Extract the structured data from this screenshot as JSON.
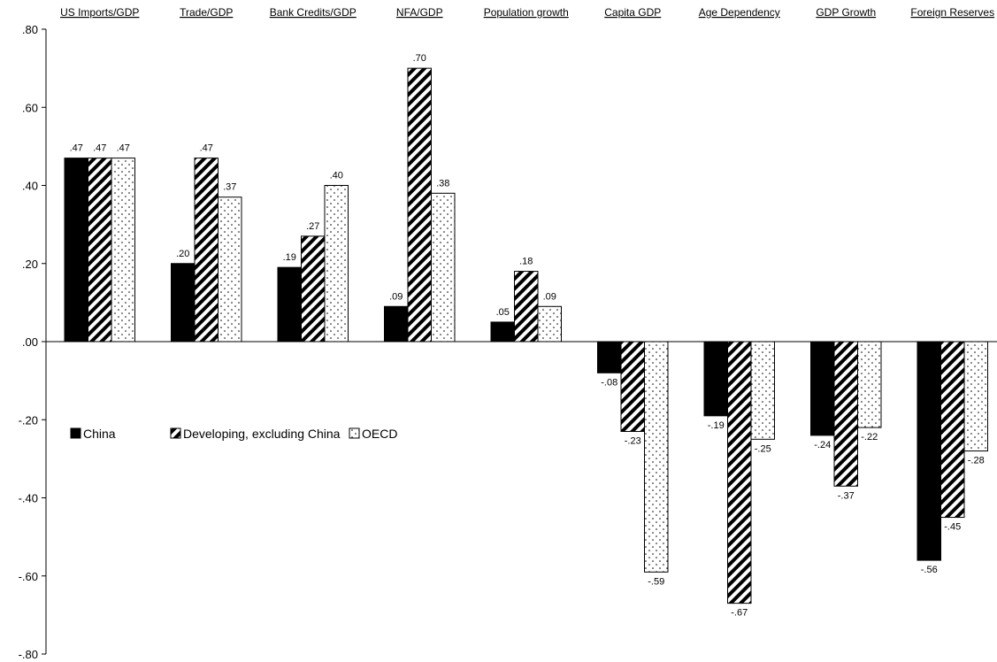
{
  "chart_data": {
    "type": "bar",
    "categories": [
      "US Imports/GDP",
      "Trade/GDP",
      "Bank Credits/GDP",
      "NFA/GDP",
      "Population growth",
      "Capita GDP",
      "Age Dependency",
      "GDP Growth",
      "Foreign Reserves"
    ],
    "series": [
      {
        "name": "China",
        "pattern": "solid",
        "color": "#000000",
        "values": [
          0.47,
          0.2,
          0.19,
          0.09,
          0.05,
          -0.08,
          -0.19,
          -0.24,
          -0.56
        ],
        "labels": [
          ".47",
          ".20",
          ".19",
          ".09",
          ".05",
          "-.08",
          "-.19",
          "-.24",
          "-.56"
        ]
      },
      {
        "name": "Developing, excluding China",
        "pattern": "diagonal-stripes",
        "color": "#000000",
        "values": [
          0.47,
          0.47,
          0.27,
          0.7,
          0.18,
          -0.23,
          -0.67,
          -0.37,
          -0.45
        ],
        "labels": [
          ".47",
          ".47",
          ".27",
          ".70",
          ".18",
          "-.23",
          "-.67",
          "-.37",
          "-.45"
        ]
      },
      {
        "name": "OECD",
        "pattern": "dots",
        "color": "#000000",
        "values": [
          0.47,
          0.37,
          0.4,
          0.38,
          0.09,
          -0.59,
          -0.25,
          -0.22,
          -0.28
        ],
        "labels": [
          ".47",
          ".37",
          ".40",
          ".38",
          ".09",
          "-.59",
          "-.25",
          "-.22",
          "-.28"
        ]
      }
    ],
    "ylim": [
      -0.8,
      0.8
    ],
    "yticks": [
      {
        "value": 0.8,
        "label": ".80"
      },
      {
        "value": 0.6,
        "label": ".60"
      },
      {
        "value": 0.4,
        "label": ".40"
      },
      {
        "value": 0.2,
        "label": ".20"
      },
      {
        "value": 0.0,
        "label": ".00"
      },
      {
        "value": -0.2,
        "label": "-.20"
      },
      {
        "value": -0.4,
        "label": "-.40"
      },
      {
        "value": -0.6,
        "label": "-.60"
      },
      {
        "value": -0.8,
        "label": "-.80"
      }
    ],
    "category_labels_position": "top",
    "legend_position": "left-middle",
    "grid": false
  }
}
